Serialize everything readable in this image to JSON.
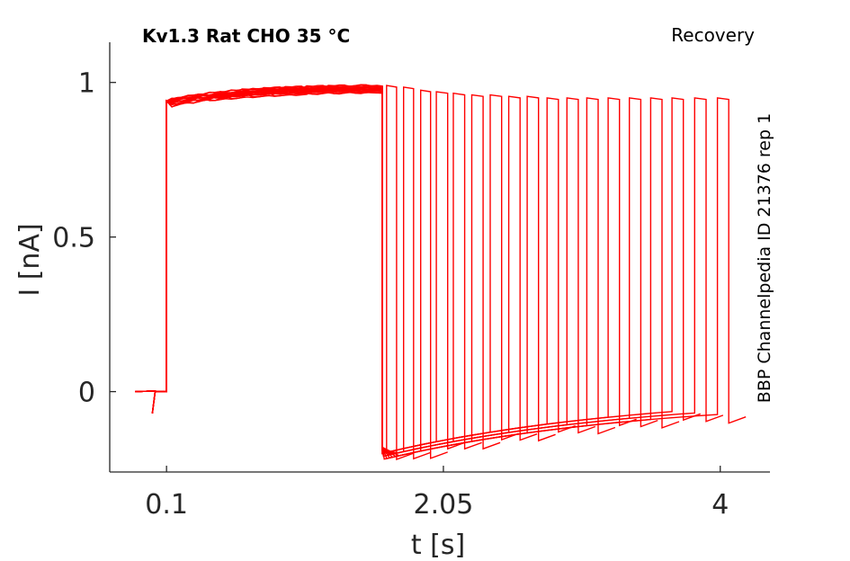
{
  "chart_data": {
    "type": "line",
    "title": "Kv1.3  Rat  CHO  35 °C",
    "subtitle": "Recovery",
    "side_label": "BBP Channelpedia ID 21376 rep 1",
    "xlabel": "t [s]",
    "ylabel": "I [nA]",
    "xlim": [
      -0.3,
      4.35
    ],
    "ylim": [
      -0.26,
      1.13
    ],
    "xticks": [
      0.1,
      2.05,
      4
    ],
    "xtick_labels": [
      "0.1",
      "2.05",
      "4"
    ],
    "yticks": [
      0,
      0.5,
      1
    ],
    "ytick_labels": [
      "0",
      "0.5",
      "1"
    ],
    "grid": false,
    "color": "#ff0000",
    "prepulse": {
      "t_on": 0.1,
      "t_off": 1.62,
      "baseline": 0.0,
      "initial_peak": 0.94,
      "final_level": 0.99,
      "tail_min": -0.2
    },
    "recovery_steps": {
      "t_on": [
        1.65,
        1.77,
        1.89,
        2.0,
        2.12,
        2.25,
        2.38,
        2.51,
        2.64,
        2.78,
        2.92,
        3.06,
        3.21,
        3.36,
        3.51,
        3.66,
        3.82,
        3.98
      ],
      "t_off": [
        1.72,
        1.84,
        1.96,
        2.08,
        2.2,
        2.33,
        2.46,
        2.59,
        2.72,
        2.86,
        3.0,
        3.14,
        3.29,
        3.44,
        3.59,
        3.74,
        3.9,
        4.06
      ],
      "peak": [
        0.99,
        0.985,
        0.975,
        0.97,
        0.965,
        0.96,
        0.96,
        0.955,
        0.955,
        0.95,
        0.95,
        0.95,
        0.95,
        0.95,
        0.95,
        0.95,
        0.95,
        0.95
      ]
    }
  }
}
